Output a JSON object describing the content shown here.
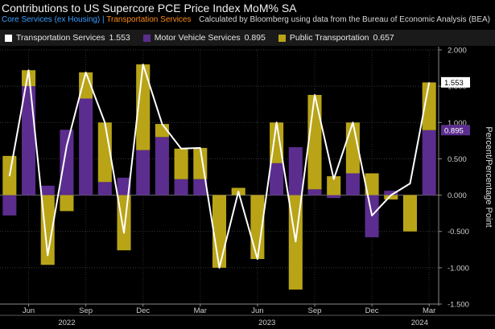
{
  "header": {
    "title": "Contributions to US Supercore PCE Price Index MoM% SA",
    "breadcrumb_a": "Core Services (ex Housing)",
    "breadcrumb_sep": "|",
    "breadcrumb_b": "Transportation Services",
    "source": "Calculated by Bloomberg using data from the Bureau of Economic Analysis (BEA)"
  },
  "legend": [
    {
      "name": "Transportation Services",
      "value": "1.553",
      "color": "#ffffff"
    },
    {
      "name": "Motor Vehicle Services",
      "value": "0.895",
      "color": "#5b2d8e"
    },
    {
      "name": "Public Transportation",
      "value": "0.657",
      "color": "#b9a418"
    }
  ],
  "chart_data": {
    "type": "bar",
    "stacked": true,
    "title": "Contributions to US Supercore PCE Price Index MoM% SA",
    "ylabel": "Percent/Percentage Point",
    "ylim": [
      -1.5,
      2.0
    ],
    "y_ticks": [
      "2.000",
      "1.500",
      "1.000",
      "0.500",
      "0.000",
      "-0.500",
      "-1.000",
      "-1.500"
    ],
    "categories": [
      "2022-05",
      "2022-06",
      "2022-07",
      "2022-08",
      "2022-09",
      "2022-10",
      "2022-11",
      "2022-12",
      "2023-01",
      "2023-02",
      "2023-03",
      "2023-04",
      "2023-05",
      "2023-06",
      "2023-07",
      "2023-08",
      "2023-09",
      "2023-10",
      "2023-11",
      "2023-12",
      "2024-01",
      "2024-02",
      "2024-03"
    ],
    "x_tick_labels": [
      {
        "index": 1,
        "label": "Jun"
      },
      {
        "index": 4,
        "label": "Sep"
      },
      {
        "index": 7,
        "label": "Dec"
      },
      {
        "index": 10,
        "label": "Mar"
      },
      {
        "index": 13,
        "label": "Jun"
      },
      {
        "index": 16,
        "label": "Sep"
      },
      {
        "index": 19,
        "label": "Dec"
      },
      {
        "index": 22,
        "label": "Mar"
      }
    ],
    "year_labels": [
      {
        "index": 3,
        "label": "2022"
      },
      {
        "index": 13.5,
        "label": "2023"
      },
      {
        "index": 21.5,
        "label": "2024"
      }
    ],
    "series": [
      {
        "name": "Motor Vehicle Services",
        "kind": "bar",
        "color": "#5b2d8e",
        "values": [
          -0.28,
          1.5,
          0.13,
          0.9,
          1.33,
          0.18,
          0.24,
          0.62,
          0.8,
          0.22,
          0.22,
          0.0,
          0.0,
          0.0,
          0.44,
          0.66,
          0.08,
          -0.04,
          0.3,
          -0.58,
          0.06,
          0.0,
          0.895
        ]
      },
      {
        "name": "Public Transportation",
        "kind": "bar",
        "color": "#b9a418",
        "values": [
          0.54,
          0.22,
          -0.96,
          -0.22,
          0.36,
          0.82,
          -0.76,
          1.18,
          0.18,
          0.42,
          0.43,
          -1.0,
          0.1,
          -0.88,
          0.56,
          -1.3,
          1.3,
          0.26,
          0.7,
          0.3,
          -0.06,
          -0.5,
          0.657
        ]
      },
      {
        "name": "Transportation Services",
        "kind": "line",
        "color": "#ffffff",
        "values": [
          0.26,
          1.72,
          -0.83,
          0.68,
          1.69,
          1.0,
          -0.52,
          1.8,
          0.98,
          0.64,
          0.65,
          -1.0,
          0.05,
          -0.88,
          1.0,
          -0.64,
          1.38,
          0.22,
          1.0,
          -0.28,
          0.0,
          0.16,
          1.553
        ]
      }
    ],
    "last_value_labels": [
      "1.553",
      "0.895"
    ]
  }
}
